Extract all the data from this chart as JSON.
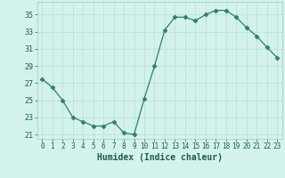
{
  "x": [
    0,
    1,
    2,
    3,
    4,
    5,
    6,
    7,
    8,
    9,
    10,
    11,
    12,
    13,
    14,
    15,
    16,
    17,
    18,
    19,
    20,
    21,
    22,
    23
  ],
  "y": [
    27.5,
    26.5,
    25.0,
    23.0,
    22.5,
    22.0,
    22.0,
    22.5,
    21.2,
    21.0,
    25.2,
    29.0,
    33.2,
    34.7,
    34.7,
    34.3,
    35.0,
    35.5,
    35.5,
    34.7,
    33.5,
    32.5,
    31.2,
    30.0
  ],
  "xlabel": "Humidex (Indice chaleur)",
  "xlim": [
    -0.5,
    23.5
  ],
  "ylim": [
    20.5,
    36.5
  ],
  "yticks": [
    21,
    23,
    25,
    27,
    29,
    31,
    33,
    35
  ],
  "xticks": [
    0,
    1,
    2,
    3,
    4,
    5,
    6,
    7,
    8,
    9,
    10,
    11,
    12,
    13,
    14,
    15,
    16,
    17,
    18,
    19,
    20,
    21,
    22,
    23
  ],
  "line_color": "#2e7d6e",
  "marker": "D",
  "marker_size": 2.5,
  "bg_color": "#d4f2ec",
  "grid_color": "#b8ddd7",
  "axis_fontsize": 7,
  "tick_fontsize": 6
}
